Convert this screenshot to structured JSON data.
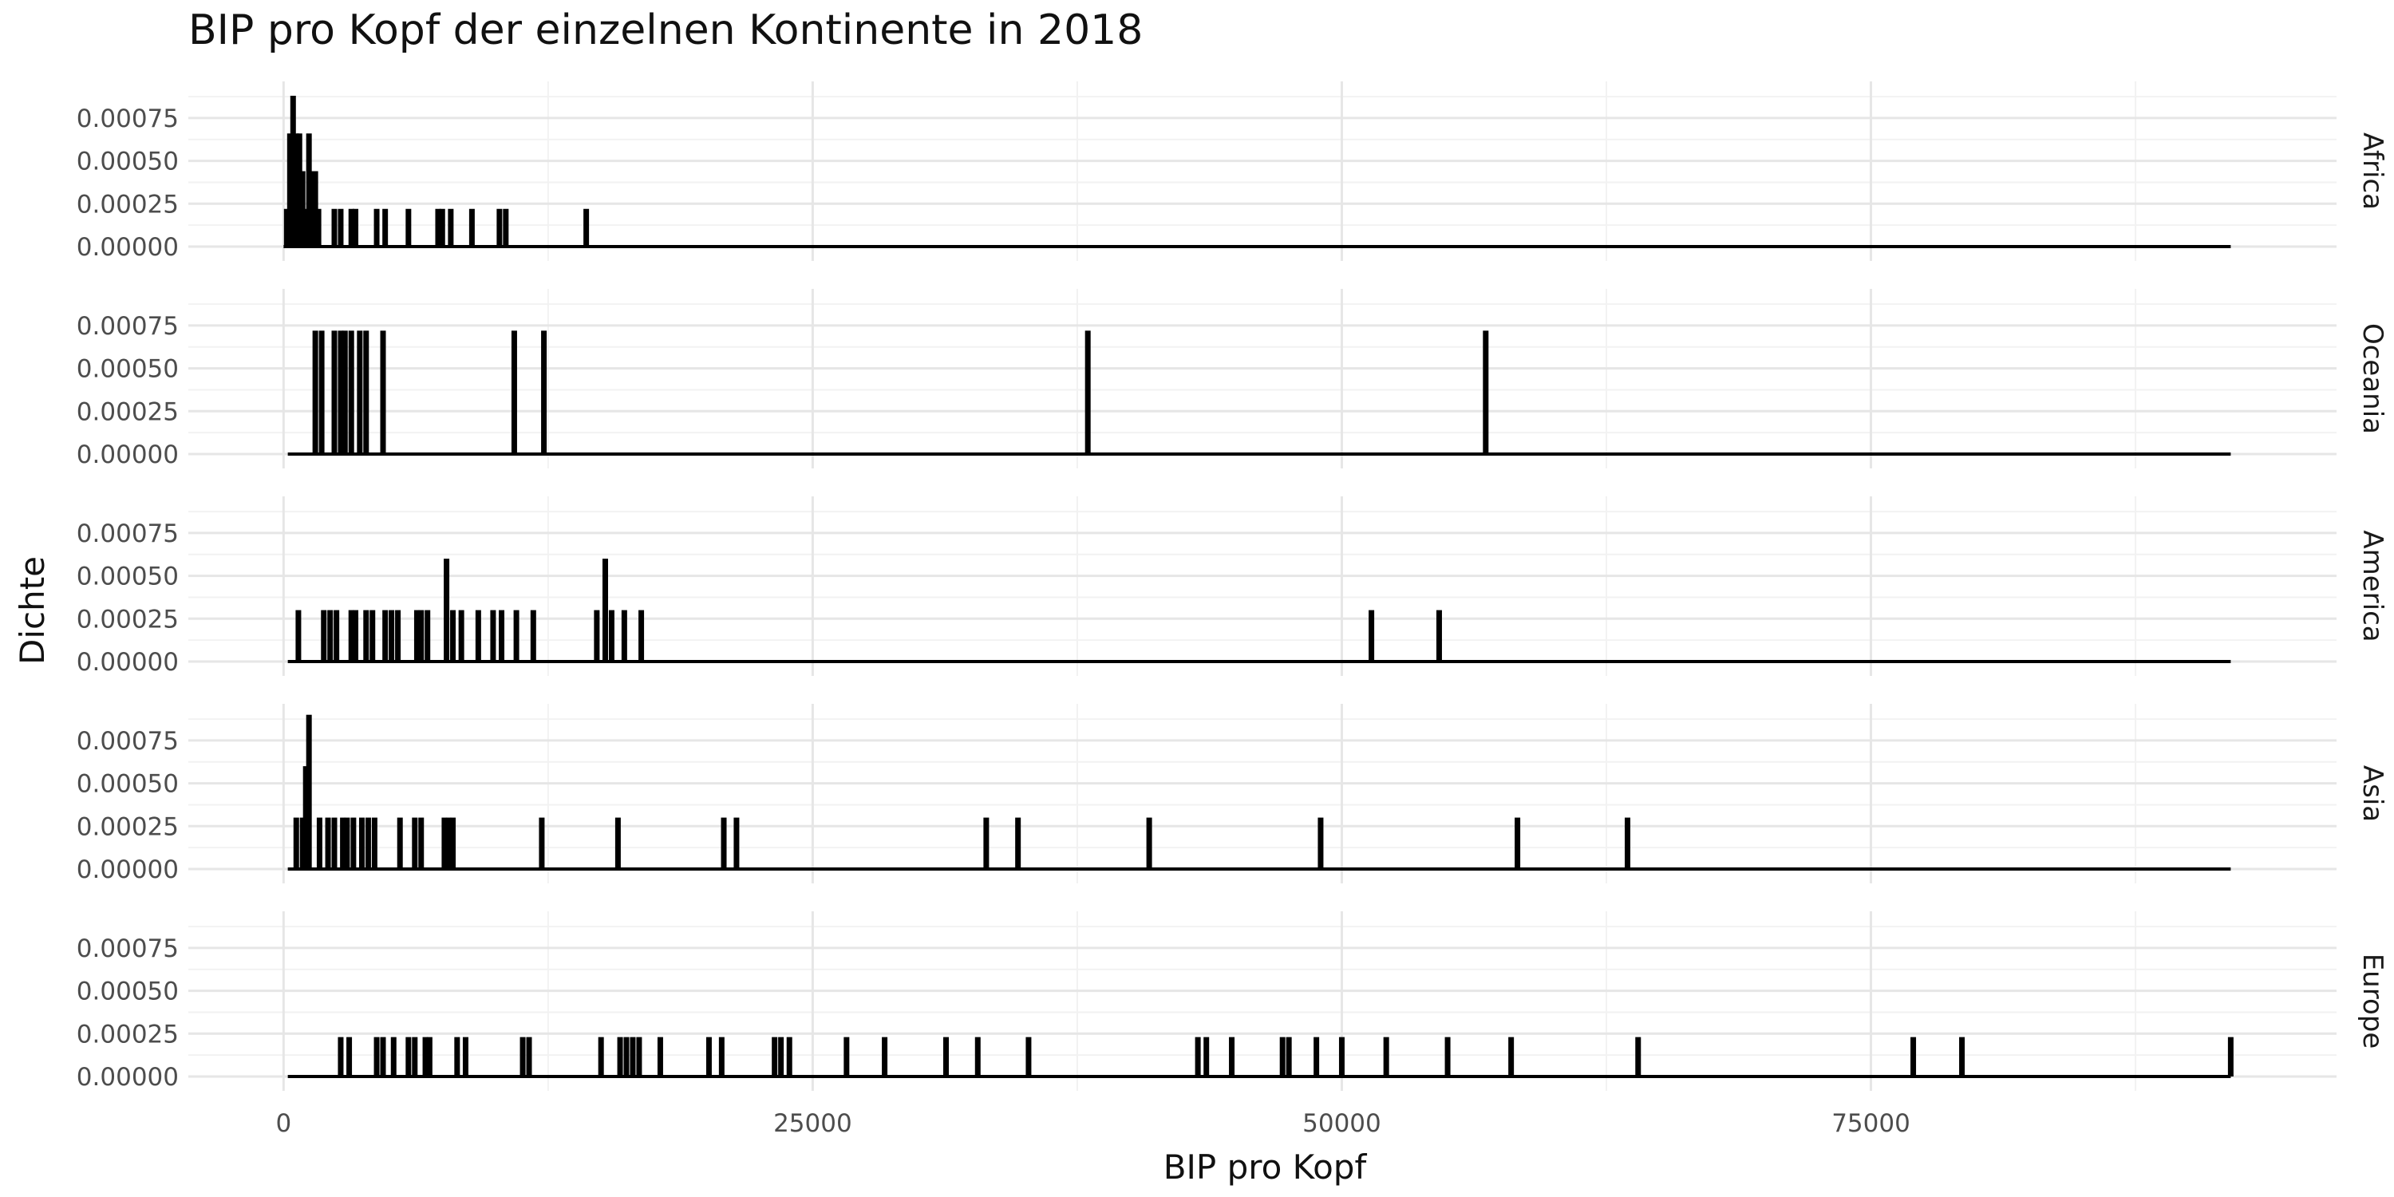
{
  "chart_data": {
    "type": "bar",
    "title": "BIP pro Kopf der einzelnen Kontinente in 2018",
    "xlabel": "BIP pro Kopf",
    "ylabel": "Dichte",
    "xlim": [
      -4500,
      97000
    ],
    "ylim": [
      0,
      0.00088
    ],
    "x_ticks": [
      0,
      25000,
      50000,
      75000
    ],
    "x_tick_labels": [
      "0",
      "25000",
      "50000",
      "75000"
    ],
    "y_ticks": [
      0,
      0.00025,
      0.0005,
      0.00075
    ],
    "y_tick_labels": [
      "0.00000",
      "0.00025",
      "0.00050",
      "0.00075"
    ],
    "bin_width": 150,
    "grid": true,
    "facets": [
      {
        "name": "Africa",
        "baseline": [
          0,
          92000
        ],
        "bars": [
          {
            "x": 150,
            "y": 0.00022
          },
          {
            "x": 300,
            "y": 0.00066
          },
          {
            "x": 450,
            "y": 0.00088
          },
          {
            "x": 600,
            "y": 0.00066
          },
          {
            "x": 750,
            "y": 0.00066
          },
          {
            "x": 900,
            "y": 0.00044
          },
          {
            "x": 1050,
            "y": 0.00022
          },
          {
            "x": 1200,
            "y": 0.00066
          },
          {
            "x": 1350,
            "y": 0.00044
          },
          {
            "x": 1500,
            "y": 0.00044
          },
          {
            "x": 1650,
            "y": 0.00022
          },
          {
            "x": 2400,
            "y": 0.00022
          },
          {
            "x": 2700,
            "y": 0.00022
          },
          {
            "x": 3200,
            "y": 0.00022
          },
          {
            "x": 3400,
            "y": 0.00022
          },
          {
            "x": 4400,
            "y": 0.00022
          },
          {
            "x": 4800,
            "y": 0.00022
          },
          {
            "x": 5900,
            "y": 0.00022
          },
          {
            "x": 7300,
            "y": 0.00022
          },
          {
            "x": 7500,
            "y": 0.00022
          },
          {
            "x": 7900,
            "y": 0.00022
          },
          {
            "x": 8900,
            "y": 0.00022
          },
          {
            "x": 10200,
            "y": 0.00022
          },
          {
            "x": 10500,
            "y": 0.00022
          },
          {
            "x": 14300,
            "y": 0.00022
          }
        ]
      },
      {
        "name": "Oceania",
        "baseline": [
          200,
          92000
        ],
        "bars": [
          {
            "x": 1500,
            "y": 0.00072
          },
          {
            "x": 1800,
            "y": 0.00072
          },
          {
            "x": 2400,
            "y": 0.00072
          },
          {
            "x": 2700,
            "y": 0.00072
          },
          {
            "x": 2900,
            "y": 0.00072
          },
          {
            "x": 3200,
            "y": 0.00072
          },
          {
            "x": 3600,
            "y": 0.00072
          },
          {
            "x": 3900,
            "y": 0.00072
          },
          {
            "x": 4700,
            "y": 0.00072
          },
          {
            "x": 10900,
            "y": 0.00072
          },
          {
            "x": 12300,
            "y": 0.00072
          },
          {
            "x": 38000,
            "y": 0.00072
          },
          {
            "x": 56800,
            "y": 0.00072
          }
        ]
      },
      {
        "name": "America",
        "baseline": [
          200,
          92000
        ],
        "bars": [
          {
            "x": 700,
            "y": 0.0003
          },
          {
            "x": 1900,
            "y": 0.0003
          },
          {
            "x": 2200,
            "y": 0.0003
          },
          {
            "x": 2500,
            "y": 0.0003
          },
          {
            "x": 3200,
            "y": 0.0003
          },
          {
            "x": 3400,
            "y": 0.0003
          },
          {
            "x": 3900,
            "y": 0.0003
          },
          {
            "x": 4200,
            "y": 0.0003
          },
          {
            "x": 4800,
            "y": 0.0003
          },
          {
            "x": 5100,
            "y": 0.0003
          },
          {
            "x": 5400,
            "y": 0.0003
          },
          {
            "x": 6300,
            "y": 0.0003
          },
          {
            "x": 6500,
            "y": 0.0003
          },
          {
            "x": 6800,
            "y": 0.0003
          },
          {
            "x": 7700,
            "y": 0.0006
          },
          {
            "x": 8000,
            "y": 0.0003
          },
          {
            "x": 8400,
            "y": 0.0003
          },
          {
            "x": 9200,
            "y": 0.0003
          },
          {
            "x": 9900,
            "y": 0.0003
          },
          {
            "x": 10300,
            "y": 0.0003
          },
          {
            "x": 11000,
            "y": 0.0003
          },
          {
            "x": 11800,
            "y": 0.0003
          },
          {
            "x": 14800,
            "y": 0.0003
          },
          {
            "x": 15200,
            "y": 0.0006
          },
          {
            "x": 15500,
            "y": 0.0003
          },
          {
            "x": 16100,
            "y": 0.0003
          },
          {
            "x": 16900,
            "y": 0.0003
          },
          {
            "x": 51400,
            "y": 0.0003
          },
          {
            "x": 54600,
            "y": 0.0003
          }
        ]
      },
      {
        "name": "Asia",
        "baseline": [
          200,
          92000
        ],
        "bars": [
          {
            "x": 600,
            "y": 0.0003
          },
          {
            "x": 900,
            "y": 0.0003
          },
          {
            "x": 1050,
            "y": 0.0006
          },
          {
            "x": 1200,
            "y": 0.0009
          },
          {
            "x": 1700,
            "y": 0.0003
          },
          {
            "x": 2100,
            "y": 0.0003
          },
          {
            "x": 2400,
            "y": 0.0003
          },
          {
            "x": 2800,
            "y": 0.0003
          },
          {
            "x": 3000,
            "y": 0.0003
          },
          {
            "x": 3300,
            "y": 0.0003
          },
          {
            "x": 3700,
            "y": 0.0003
          },
          {
            "x": 4000,
            "y": 0.0003
          },
          {
            "x": 4300,
            "y": 0.0003
          },
          {
            "x": 5500,
            "y": 0.0003
          },
          {
            "x": 6200,
            "y": 0.0003
          },
          {
            "x": 6500,
            "y": 0.0003
          },
          {
            "x": 7600,
            "y": 0.0003
          },
          {
            "x": 7800,
            "y": 0.0003
          },
          {
            "x": 8000,
            "y": 0.0003
          },
          {
            "x": 12200,
            "y": 0.0003
          },
          {
            "x": 15800,
            "y": 0.0003
          },
          {
            "x": 20800,
            "y": 0.0003
          },
          {
            "x": 21400,
            "y": 0.0003
          },
          {
            "x": 33200,
            "y": 0.0003
          },
          {
            "x": 34700,
            "y": 0.0003
          },
          {
            "x": 40900,
            "y": 0.0003
          },
          {
            "x": 49000,
            "y": 0.0003
          },
          {
            "x": 58300,
            "y": 0.0003
          },
          {
            "x": 63500,
            "y": 0.0003
          }
        ]
      },
      {
        "name": "Europe",
        "baseline": [
          200,
          92000
        ],
        "bars": [
          {
            "x": 2700,
            "y": 0.00023
          },
          {
            "x": 3100,
            "y": 0.00023
          },
          {
            "x": 4400,
            "y": 0.00023
          },
          {
            "x": 4700,
            "y": 0.00023
          },
          {
            "x": 5200,
            "y": 0.00023
          },
          {
            "x": 5900,
            "y": 0.00023
          },
          {
            "x": 6200,
            "y": 0.00023
          },
          {
            "x": 6700,
            "y": 0.00023
          },
          {
            "x": 6900,
            "y": 0.00023
          },
          {
            "x": 8200,
            "y": 0.00023
          },
          {
            "x": 8600,
            "y": 0.00023
          },
          {
            "x": 11300,
            "y": 0.00023
          },
          {
            "x": 11600,
            "y": 0.00023
          },
          {
            "x": 15000,
            "y": 0.00023
          },
          {
            "x": 15900,
            "y": 0.00023
          },
          {
            "x": 16200,
            "y": 0.00023
          },
          {
            "x": 16500,
            "y": 0.00023
          },
          {
            "x": 16800,
            "y": 0.00023
          },
          {
            "x": 17800,
            "y": 0.00023
          },
          {
            "x": 20100,
            "y": 0.00023
          },
          {
            "x": 20700,
            "y": 0.00023
          },
          {
            "x": 23200,
            "y": 0.00023
          },
          {
            "x": 23500,
            "y": 0.00023
          },
          {
            "x": 23900,
            "y": 0.00023
          },
          {
            "x": 26600,
            "y": 0.00023
          },
          {
            "x": 28400,
            "y": 0.00023
          },
          {
            "x": 31300,
            "y": 0.00023
          },
          {
            "x": 32800,
            "y": 0.00023
          },
          {
            "x": 35200,
            "y": 0.00023
          },
          {
            "x": 43200,
            "y": 0.00023
          },
          {
            "x": 43600,
            "y": 0.00023
          },
          {
            "x": 44800,
            "y": 0.00023
          },
          {
            "x": 47200,
            "y": 0.00023
          },
          {
            "x": 47500,
            "y": 0.00023
          },
          {
            "x": 48800,
            "y": 0.00023
          },
          {
            "x": 50000,
            "y": 0.00023
          },
          {
            "x": 52100,
            "y": 0.00023
          },
          {
            "x": 55000,
            "y": 0.00023
          },
          {
            "x": 58000,
            "y": 0.00023
          },
          {
            "x": 64000,
            "y": 0.00023
          },
          {
            "x": 77000,
            "y": 0.00023
          },
          {
            "x": 79300,
            "y": 0.00023
          },
          {
            "x": 92000,
            "y": 0.00023
          }
        ]
      }
    ]
  }
}
